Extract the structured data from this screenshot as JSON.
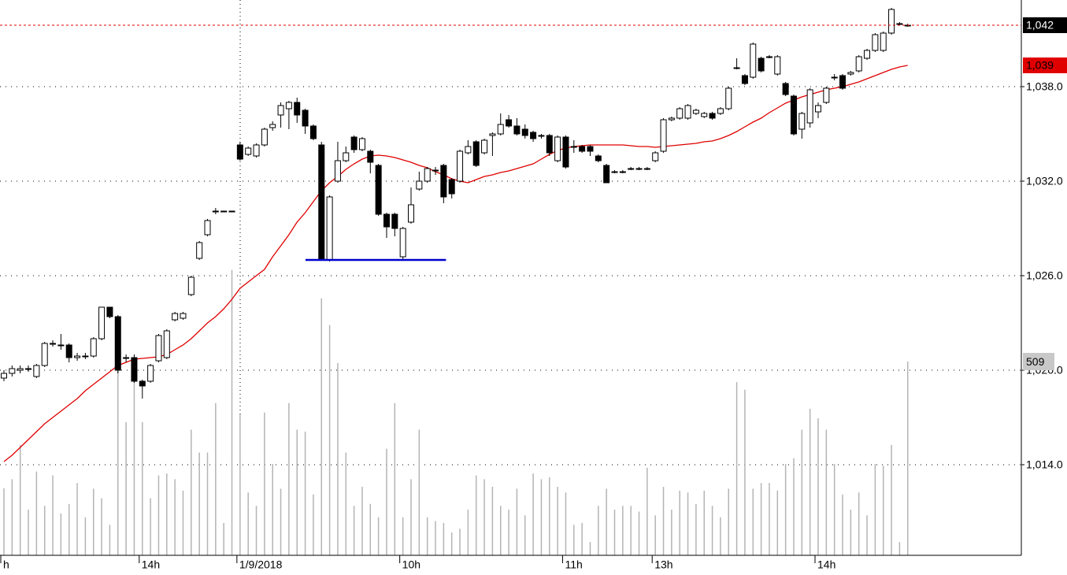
{
  "chart_data": {
    "type": "candlestick",
    "categories": [
      "h",
      null,
      null,
      null,
      null,
      null,
      null,
      null,
      null,
      null,
      null,
      null,
      null,
      null,
      null,
      null,
      null,
      "14h",
      null,
      null,
      null,
      null,
      null,
      null,
      null,
      null,
      null,
      null,
      null,
      "1/9/2018",
      null,
      null,
      null,
      null,
      null,
      null,
      null,
      null,
      null,
      null,
      null,
      null,
      null,
      null,
      null,
      null,
      null,
      null,
      null,
      "10h",
      null,
      null,
      null,
      null,
      null,
      null,
      null,
      null,
      null,
      null,
      null,
      null,
      null,
      null,
      null,
      null,
      null,
      null,
      null,
      "11h",
      null,
      null,
      null,
      null,
      null,
      null,
      null,
      null,
      null,
      null,
      "13h",
      null,
      null,
      null,
      null,
      null,
      null,
      null,
      null,
      null,
      null,
      null,
      null,
      null,
      null,
      null,
      null,
      null,
      null,
      null,
      "14h",
      null,
      null,
      null,
      null,
      null,
      null,
      null,
      null,
      null,
      null,
      null
    ],
    "open": [
      1019.5,
      1019.8,
      1020.0,
      1020.1,
      1019.6,
      1020.3,
      1021.7,
      1021.6,
      1021.6,
      1020.8,
      1020.9,
      1020.9,
      1022.0,
      1024.0,
      1023.4,
      1020.8,
      1020.8,
      1019.3,
      1019.3,
      1020.6,
      1020.8,
      1023.2,
      1023.3,
      1024.8,
      1027.1,
      1028.6,
      1030.1,
      1030.1,
      1030.1,
      1034.3,
      1033.7,
      1033.6,
      1034.3,
      1035.4,
      1036.2,
      1036.6,
      1037.0,
      1036.5,
      1035.5,
      1034.3,
      1027.0,
      1032.0,
      1033.3,
      1034.8,
      1034.0,
      1033.9,
      1033.0,
      1029.9,
      1029.9,
      1027.2,
      1029.4,
      1031.5,
      1032.0,
      1032.7,
      1033.0,
      1032.1,
      1032.0,
      1033.8,
      1034.5,
      1033.8,
      1034.9,
      1035.0,
      1035.9,
      1035.5,
      1035.3,
      1035.1,
      1034.9,
      1034.9,
      1033.3,
      1034.8,
      1034.2,
      1034.2,
      1034.2,
      1033.6,
      1033.0,
      1032.6,
      1032.6,
      1032.8,
      1032.8,
      1032.8,
      1033.3,
      1033.9,
      1035.9,
      1036.0,
      1036.0,
      1036.3,
      1036.1,
      1036.3,
      1036.3,
      1036.6,
      1039.2,
      1038.7,
      1038.6,
      1039.8,
      1039.9,
      1038.8,
      1038.2,
      1037.4,
      1035.3,
      1035.7,
      1036.4,
      1037.0,
      1038.6,
      1038.7,
      1038.8,
      1039.0,
      1039.8,
      1040.3,
      1040.3,
      1041.4,
      1042.0,
      1041.9
    ],
    "high": [
      1020.0,
      1020.3,
      1020.3,
      1020.3,
      1020.4,
      1021.8,
      1021.9,
      1022.3,
      1021.7,
      1021.1,
      1021.1,
      1022.1,
      1024.0,
      1024.0,
      1023.5,
      1021.0,
      1021.0,
      1019.4,
      1020.4,
      1022.3,
      1022.6,
      1023.7,
      1023.7,
      1026.0,
      1028.2,
      1029.6,
      1030.3,
      1030.1,
      1030.1,
      1034.5,
      1034.2,
      1034.4,
      1035.4,
      1035.8,
      1037.0,
      1037.1,
      1037.3,
      1036.6,
      1035.6,
      1034.5,
      1031.1,
      1034.5,
      1034.2,
      1034.9,
      1034.8,
      1034.0,
      1033.1,
      1030.0,
      1030.0,
      1029.1,
      1031.6,
      1032.6,
      1032.9,
      1032.9,
      1033.1,
      1032.2,
      1034.0,
      1034.6,
      1034.6,
      1034.7,
      1035.1,
      1036.3,
      1036.2,
      1036.0,
      1035.6,
      1035.2,
      1035.0,
      1035.0,
      1034.9,
      1034.9,
      1034.6,
      1034.3,
      1034.3,
      1033.7,
      1033.1,
      1032.7,
      1032.7,
      1032.9,
      1032.9,
      1032.9,
      1033.9,
      1036.0,
      1036.1,
      1036.7,
      1036.9,
      1036.6,
      1036.4,
      1036.4,
      1036.7,
      1038.0,
      1039.8,
      1038.8,
      1040.8,
      1039.9,
      1040.0,
      1040.0,
      1038.3,
      1037.5,
      1036.4,
      1037.9,
      1037.0,
      1038.0,
      1038.8,
      1038.8,
      1039.0,
      1040.0,
      1040.4,
      1041.4,
      1041.5,
      1043.0,
      1042.1,
      1042.0
    ],
    "low": [
      1019.3,
      1019.6,
      1019.8,
      1019.9,
      1019.5,
      1020.2,
      1021.5,
      1021.3,
      1020.5,
      1020.6,
      1020.7,
      1020.8,
      1021.9,
      1023.3,
      1019.8,
      1020.5,
      1019.2,
      1018.2,
      1019.2,
      1020.5,
      1020.7,
      1023.1,
      1023.2,
      1024.7,
      1027.0,
      1028.5,
      1029.9,
      1030.1,
      1030.1,
      1033.3,
      1033.6,
      1033.5,
      1034.2,
      1035.2,
      1035.4,
      1035.3,
      1035.7,
      1035.0,
      1034.6,
      1027.0,
      1026.9,
      1031.9,
      1033.2,
      1033.8,
      1033.9,
      1032.5,
      1029.8,
      1028.4,
      1028.5,
      1027.0,
      1029.3,
      1031.4,
      1031.9,
      1032.4,
      1030.6,
      1030.9,
      1031.9,
      1033.7,
      1032.9,
      1033.7,
      1033.6,
      1034.9,
      1035.4,
      1034.9,
      1034.7,
      1034.5,
      1034.7,
      1033.6,
      1033.2,
      1032.8,
      1033.8,
      1033.8,
      1033.6,
      1033.2,
      1031.9,
      1032.5,
      1032.5,
      1032.7,
      1032.7,
      1032.7,
      1033.2,
      1033.8,
      1035.8,
      1035.9,
      1035.9,
      1036.2,
      1036.0,
      1035.9,
      1036.2,
      1036.5,
      1039.1,
      1038.1,
      1038.5,
      1038.9,
      1039.8,
      1038.7,
      1037.4,
      1034.9,
      1034.7,
      1035.4,
      1036.0,
      1036.9,
      1038.4,
      1037.8,
      1038.7,
      1038.9,
      1039.7,
      1040.2,
      1040.2,
      1041.3,
      1041.9,
      1041.8
    ],
    "close": [
      1019.8,
      1020.1,
      1020.1,
      1020.1,
      1020.3,
      1021.7,
      1021.7,
      1021.6,
      1020.8,
      1020.9,
      1020.9,
      1022.0,
      1024.0,
      1023.4,
      1020.0,
      1020.8,
      1019.3,
      1019.0,
      1020.3,
      1022.2,
      1022.5,
      1023.6,
      1023.6,
      1025.9,
      1028.1,
      1029.5,
      1030.1,
      1030.1,
      1030.1,
      1033.4,
      1034.1,
      1034.3,
      1035.3,
      1035.6,
      1036.8,
      1037.0,
      1036.2,
      1035.5,
      1034.7,
      1027.0,
      1031.0,
      1033.3,
      1033.8,
      1034.0,
      1034.7,
      1033.2,
      1029.9,
      1029.1,
      1029.0,
      1029.0,
      1030.5,
      1032.0,
      1032.8,
      1032.7,
      1031.0,
      1031.2,
      1033.9,
      1034.2,
      1033.0,
      1034.6,
      1035.0,
      1035.6,
      1035.5,
      1035.0,
      1034.9,
      1034.7,
      1034.9,
      1033.8,
      1034.8,
      1032.9,
      1034.2,
      1033.9,
      1033.9,
      1033.3,
      1031.9,
      1032.6,
      1032.6,
      1032.8,
      1032.8,
      1032.8,
      1033.8,
      1035.9,
      1036.0,
      1036.6,
      1036.8,
      1036.5,
      1036.3,
      1036.0,
      1036.6,
      1037.9,
      1039.2,
      1038.2,
      1040.7,
      1039.0,
      1039.9,
      1039.9,
      1037.5,
      1035.0,
      1036.3,
      1037.8,
      1036.8,
      1037.9,
      1038.6,
      1037.9,
      1038.9,
      1039.9,
      1040.3,
      1041.3,
      1041.4,
      1042.9,
      1042.0,
      1041.9
    ],
    "volume": [
      176,
      200,
      290,
      120,
      220,
      130,
      210,
      110,
      135,
      190,
      100,
      175,
      150,
      80,
      490,
      350,
      520,
      350,
      150,
      210,
      215,
      200,
      170,
      330,
      270,
      270,
      400,
      85,
      750,
      370,
      165,
      130,
      375,
      240,
      175,
      400,
      330,
      325,
      160,
      675,
      605,
      505,
      270,
      130,
      180,
      135,
      100,
      280,
      400,
      100,
      200,
      330,
      100,
      90,
      85,
      60,
      70,
      120,
      210,
      200,
      180,
      130,
      120,
      175,
      105,
      215,
      200,
      205,
      180,
      165,
      80,
      85,
      35,
      130,
      175,
      120,
      130,
      130,
      115,
      230,
      105,
      180,
      120,
      170,
      165,
      135,
      170,
      130,
      100,
      175,
      455,
      435,
      175,
      190,
      190,
      170,
      240,
      255,
      330,
      385,
      360,
      330,
      240,
      160,
      120,
      165,
      105,
      240,
      235,
      290,
      35,
      509
    ],
    "ma": {
      "color": "#e00000",
      "values": [
        1014.2,
        1014.6,
        1015.1,
        1015.6,
        1016.1,
        1016.6,
        1017.0,
        1017.4,
        1017.8,
        1018.2,
        1018.7,
        1019.1,
        1019.5,
        1019.9,
        1020.3,
        1020.5,
        1020.7,
        1020.75,
        1020.8,
        1020.85,
        1021.0,
        1021.3,
        1021.6,
        1022.0,
        1022.5,
        1023.0,
        1023.4,
        1023.9,
        1024.5,
        1025.2,
        1025.6,
        1026.0,
        1026.4,
        1027.2,
        1027.9,
        1028.6,
        1029.4,
        1030.0,
        1030.7,
        1031.4,
        1031.9,
        1032.3,
        1032.75,
        1033.1,
        1033.4,
        1033.6,
        1033.65,
        1033.6,
        1033.5,
        1033.35,
        1033.2,
        1033.0,
        1032.85,
        1032.6,
        1032.4,
        1032.15,
        1032.0,
        1031.9,
        1032.1,
        1032.3,
        1032.4,
        1032.55,
        1032.65,
        1032.8,
        1032.95,
        1033.1,
        1033.4,
        1033.7,
        1033.95,
        1034.1,
        1034.2,
        1034.25,
        1034.3,
        1034.3,
        1034.3,
        1034.3,
        1034.3,
        1034.25,
        1034.2,
        1034.2,
        1034.15,
        1034.2,
        1034.25,
        1034.3,
        1034.35,
        1034.4,
        1034.5,
        1034.55,
        1034.7,
        1034.9,
        1035.15,
        1035.45,
        1035.75,
        1036.0,
        1036.35,
        1036.65,
        1036.95,
        1037.15,
        1037.35,
        1037.5,
        1037.65,
        1037.8,
        1037.9,
        1038.0,
        1038.15,
        1038.3,
        1038.5,
        1038.7,
        1038.9,
        1039.1,
        1039.25,
        1039.35
      ]
    },
    "up_color": "#ffffff",
    "down_color": "#000000",
    "volume_color": "#b4b4b4",
    "ylim": [
      1008.25,
      1043.5
    ],
    "yticks": [
      {
        "value": 1014,
        "label": "1,014.0"
      },
      {
        "value": 1020,
        "label": "1,020.0"
      },
      {
        "value": 1026,
        "label": "1,026.0"
      },
      {
        "value": 1032,
        "label": "1,032.0"
      },
      {
        "value": 1038,
        "label": "1,038.0"
      }
    ],
    "y2lim": [
      0,
      1459
    ],
    "grid": true,
    "last_label": "1,042",
    "ma_label": "1,039",
    "support_line": {
      "value": 1027.0,
      "color": "#0000cc",
      "start": 38,
      "end": 54
    }
  }
}
